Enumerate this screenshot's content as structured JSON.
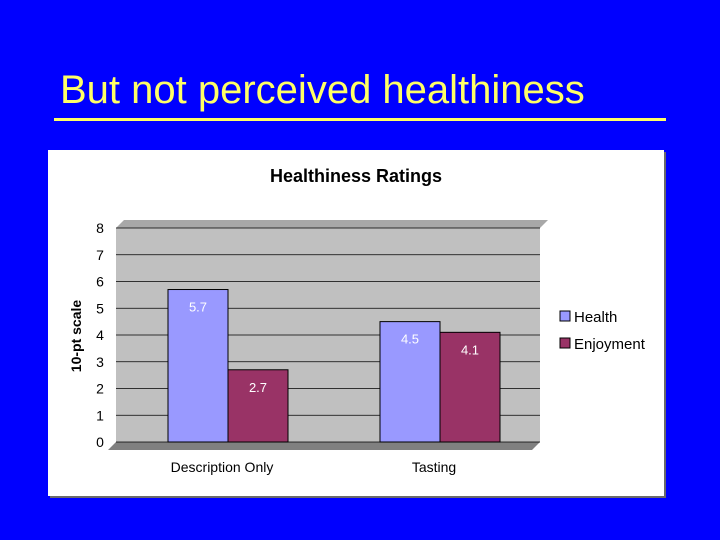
{
  "slide": {
    "title": "But not perceived healthiness"
  },
  "colors": {
    "background": "#0000FF",
    "title": "#FFFF66",
    "plot_area": "#C0C0C0",
    "health": "#9999FF",
    "enjoyment": "#993366"
  },
  "chart_data": {
    "type": "bar",
    "title": "Healthiness Ratings",
    "xlabel": "",
    "ylabel": "10-pt scale",
    "categories": [
      "Description Only",
      "Tasting"
    ],
    "series": [
      {
        "name": "Health",
        "values": [
          5.7,
          4.5
        ],
        "color": "#9999FF"
      },
      {
        "name": "Enjoyment",
        "values": [
          2.7,
          4.1
        ],
        "color": "#993366"
      }
    ],
    "data_labels": [
      [
        "5.7",
        "4.5"
      ],
      [
        "2.7",
        "4.1"
      ]
    ],
    "ylim": [
      0,
      8
    ],
    "yticks": [
      0,
      1,
      2,
      3,
      4,
      5,
      6,
      7,
      8
    ],
    "grid": true,
    "legend_position": "right"
  }
}
